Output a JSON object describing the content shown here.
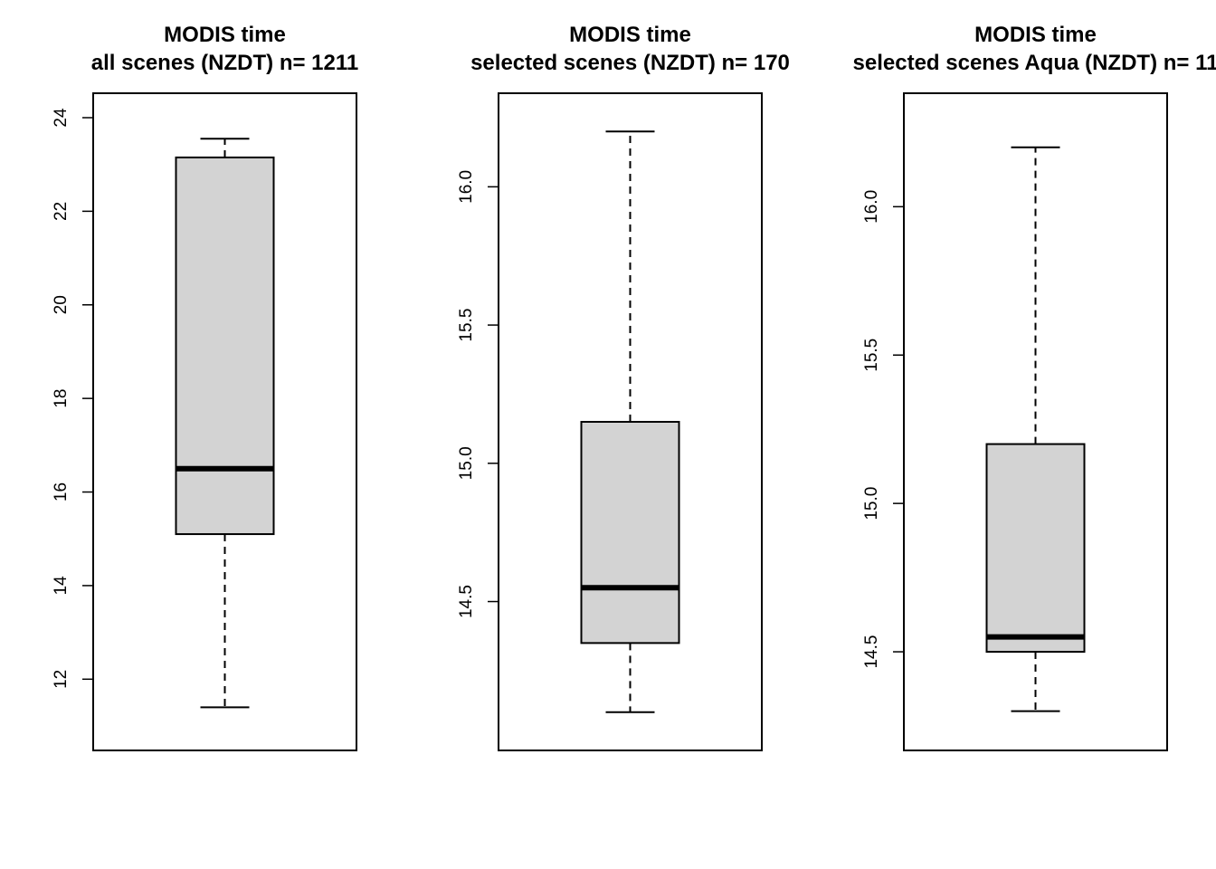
{
  "chart_data": [
    {
      "type": "box",
      "title": "MODIS time",
      "subtitle": "all scenes (NZDT) n= 1211",
      "ylim": [
        11.0,
        24.0
      ],
      "yticks": [
        12,
        14,
        16,
        18,
        20,
        22,
        24
      ],
      "ytick_labels": [
        "12",
        "14",
        "16",
        "18",
        "20",
        "22",
        "24"
      ],
      "stats": {
        "min": 11.4,
        "q1": 15.1,
        "median": 16.5,
        "q3": 23.15,
        "max": 23.55
      },
      "box_fill": "#d3d3d3"
    },
    {
      "type": "box",
      "title": "MODIS time",
      "subtitle": "selected scenes (NZDT) n= 170",
      "ylim": [
        14.05,
        16.25
      ],
      "yticks": [
        14.5,
        15.0,
        15.5,
        16.0
      ],
      "ytick_labels": [
        "14.5",
        "15.0",
        "15.5",
        "16.0"
      ],
      "stats": {
        "min": 14.1,
        "q1": 14.35,
        "median": 14.55,
        "q3": 15.15,
        "max": 16.2
      },
      "box_fill": "#d3d3d3"
    },
    {
      "type": "box",
      "title": "MODIS time",
      "subtitle": "selected scenes Aqua (NZDT) n= 11",
      "ylim": [
        14.25,
        16.3
      ],
      "yticks": [
        14.5,
        15.0,
        15.5,
        16.0
      ],
      "ytick_labels": [
        "14.5",
        "15.0",
        "15.5",
        "16.0"
      ],
      "stats": {
        "min": 14.3,
        "q1": 14.5,
        "median": 14.55,
        "q3": 15.2,
        "max": 16.2
      },
      "box_fill": "#d3d3d3"
    }
  ]
}
